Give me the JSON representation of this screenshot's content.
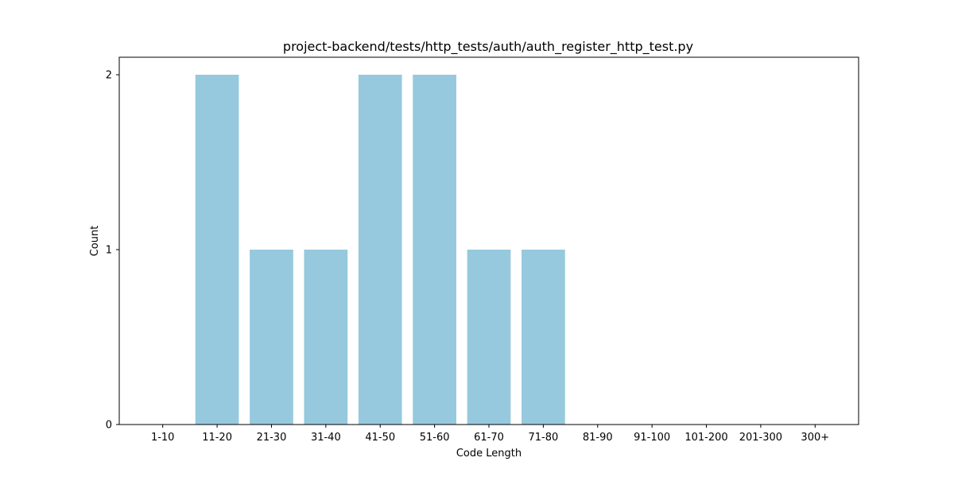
{
  "chart_data": {
    "type": "bar",
    "title": "project-backend/tests/http_tests/auth/auth_register_http_test.py",
    "xlabel": "Code Length",
    "ylabel": "Count",
    "categories": [
      "1-10",
      "11-20",
      "21-30",
      "31-40",
      "41-50",
      "51-60",
      "61-70",
      "71-80",
      "81-90",
      "91-100",
      "101-200",
      "201-300",
      "300+"
    ],
    "values": [
      0,
      2,
      1,
      1,
      2,
      2,
      1,
      1,
      0,
      0,
      0,
      0,
      0
    ],
    "yticks": [
      "0",
      "1",
      "2"
    ],
    "ylim": [
      0,
      2.1
    ],
    "grid": false,
    "legend": "none",
    "bar_color": "#96c9dd"
  }
}
